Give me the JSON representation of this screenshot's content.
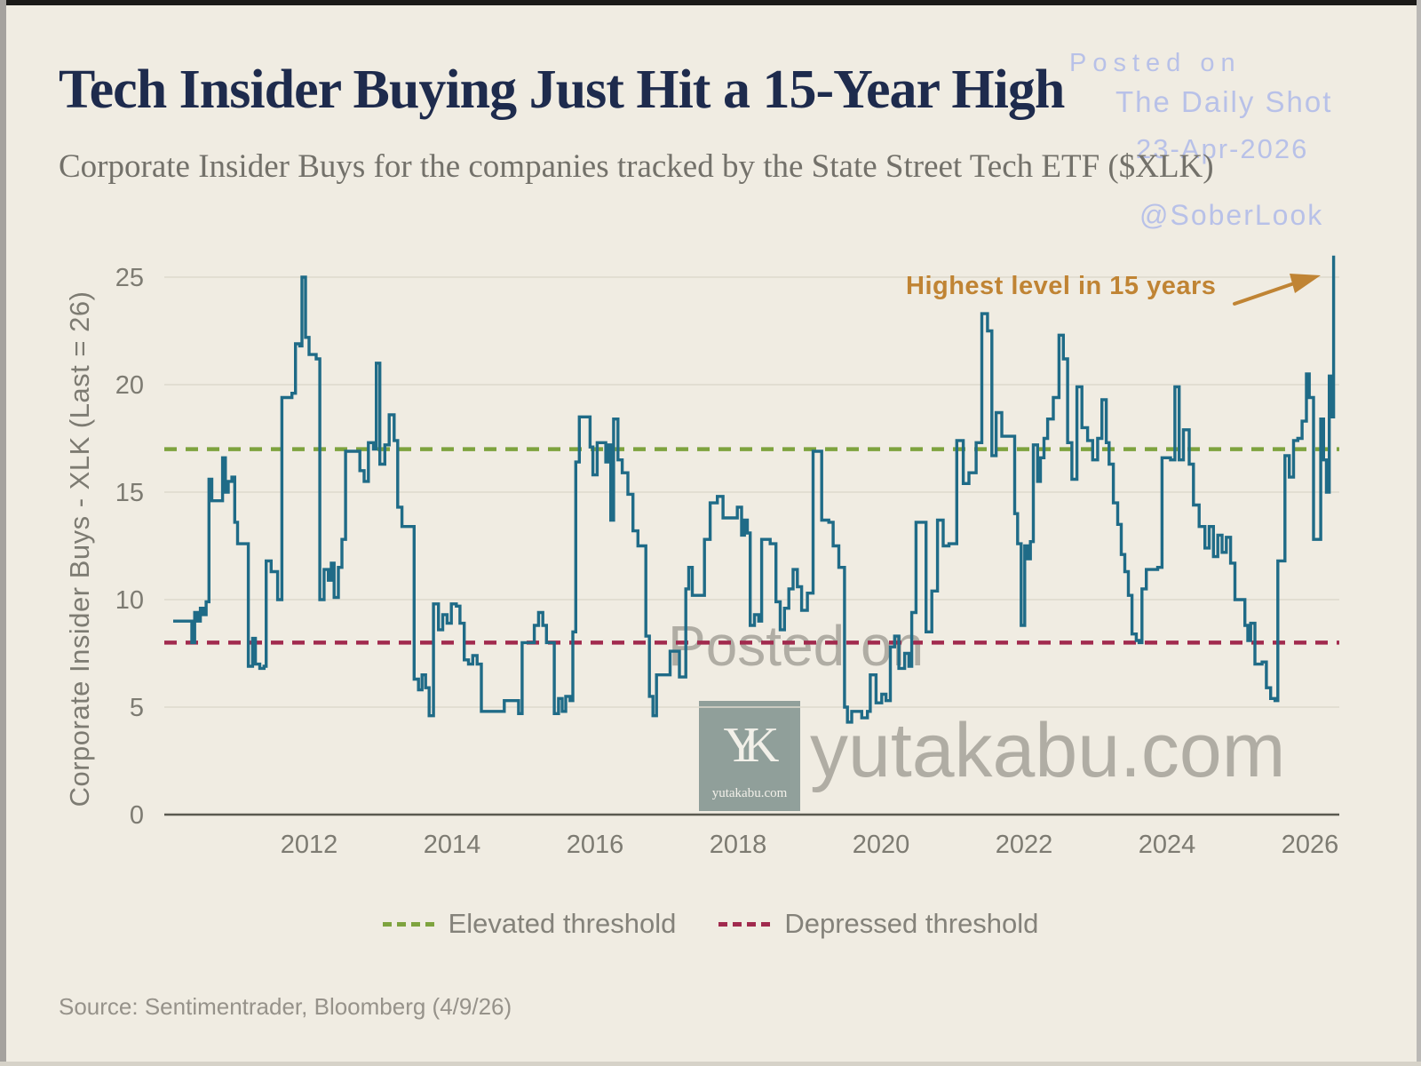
{
  "header": {
    "title": "Tech Insider Buying Just Hit a 15-Year High",
    "subtitle": "Corporate Insider Buys for the companies tracked by the State Street Tech ETF ($XLK)"
  },
  "watermarks": {
    "accent_color": "#b6bfe9",
    "gray_color": "#7d7a73",
    "posted_on_small": "Posted on",
    "daily_shot": "The Daily Shot",
    "date": "23-Apr-2026",
    "handle": "@SoberLook",
    "posted_on_large": "Posted on",
    "site": "yutakabu.com",
    "logo_monogram": "YK",
    "logo_caption": "yutakabu.com",
    "logo_box_color": "#8d9c98"
  },
  "legend": [
    {
      "label": "Elevated threshold",
      "color": "#7ea33e"
    },
    {
      "label": "Depressed threshold",
      "color": "#a12a4e"
    }
  ],
  "footer": {
    "source": "Source: Sentimentrader, Bloomberg (4/9/26)"
  },
  "chart_data": {
    "type": "line",
    "ylabel": "Corporate Insider Buys - XLK (Last = 26)",
    "xlabel": "",
    "x_ticks": [
      2012,
      2014,
      2016,
      2018,
      2020,
      2022,
      2024,
      2026
    ],
    "y_ticks": [
      0,
      5,
      10,
      15,
      20,
      25
    ],
    "xlim": [
      2010.1,
      2026.45
    ],
    "ylim": [
      0,
      26.5
    ],
    "grid": "horizontal",
    "legend_position": "bottom",
    "line_color": "#1f6b87",
    "grid_color": "#ded9cc",
    "axis_color": "#5a594f",
    "tick_color": "#7d7b72",
    "last_value": 26,
    "annotation": {
      "text": "Highest level in 15 years",
      "color": "#c08434"
    },
    "thresholds": {
      "elevated": {
        "value": 17,
        "color": "#7ea33e",
        "label": "Elevated threshold"
      },
      "depressed": {
        "value": 8,
        "color": "#a12a4e",
        "label": "Depressed threshold"
      }
    },
    "series": [
      {
        "name": "Corporate Insider Buys - XLK",
        "points": [
          [
            2010.1,
            9.0
          ],
          [
            2010.32,
            9.0
          ],
          [
            2010.36,
            8.0
          ],
          [
            2010.4,
            9.4
          ],
          [
            2010.44,
            9.0
          ],
          [
            2010.48,
            9.6
          ],
          [
            2010.52,
            9.3
          ],
          [
            2010.56,
            9.9
          ],
          [
            2010.6,
            15.6
          ],
          [
            2010.64,
            14.6
          ],
          [
            2010.74,
            14.6
          ],
          [
            2010.79,
            16.6
          ],
          [
            2010.83,
            15.0
          ],
          [
            2010.87,
            15.5
          ],
          [
            2010.92,
            15.7
          ],
          [
            2010.96,
            13.6
          ],
          [
            2011.0,
            12.6
          ],
          [
            2011.11,
            12.6
          ],
          [
            2011.15,
            6.9
          ],
          [
            2011.21,
            8.2
          ],
          [
            2011.25,
            7.0
          ],
          [
            2011.31,
            6.8
          ],
          [
            2011.37,
            6.9
          ],
          [
            2011.4,
            11.8
          ],
          [
            2011.47,
            11.3
          ],
          [
            2011.56,
            10.0
          ],
          [
            2011.62,
            19.4
          ],
          [
            2011.76,
            19.6
          ],
          [
            2011.81,
            21.9
          ],
          [
            2011.87,
            21.8
          ],
          [
            2011.9,
            25.0
          ],
          [
            2011.95,
            22.2
          ],
          [
            2012.0,
            21.4
          ],
          [
            2012.1,
            21.2
          ],
          [
            2012.15,
            10.0
          ],
          [
            2012.21,
            11.4
          ],
          [
            2012.27,
            10.9
          ],
          [
            2012.31,
            11.7
          ],
          [
            2012.35,
            10.1
          ],
          [
            2012.41,
            11.5
          ],
          [
            2012.46,
            12.8
          ],
          [
            2012.51,
            16.9
          ],
          [
            2012.64,
            16.9
          ],
          [
            2012.71,
            16.0
          ],
          [
            2012.77,
            15.5
          ],
          [
            2012.83,
            17.3
          ],
          [
            2012.9,
            17.0
          ],
          [
            2012.94,
            21.0
          ],
          [
            2012.99,
            16.3
          ],
          [
            2013.06,
            17.2
          ],
          [
            2013.12,
            18.6
          ],
          [
            2013.19,
            17.4
          ],
          [
            2013.24,
            14.3
          ],
          [
            2013.3,
            13.4
          ],
          [
            2013.43,
            13.4
          ],
          [
            2013.47,
            6.3
          ],
          [
            2013.53,
            5.8
          ],
          [
            2013.58,
            6.5
          ],
          [
            2013.63,
            5.9
          ],
          [
            2013.68,
            4.6
          ],
          [
            2013.74,
            9.8
          ],
          [
            2013.81,
            8.6
          ],
          [
            2013.87,
            9.3
          ],
          [
            2013.93,
            8.9
          ],
          [
            2013.99,
            9.8
          ],
          [
            2014.06,
            9.7
          ],
          [
            2014.11,
            8.9
          ],
          [
            2014.17,
            7.2
          ],
          [
            2014.23,
            7.0
          ],
          [
            2014.29,
            7.4
          ],
          [
            2014.35,
            7.0
          ],
          [
            2014.41,
            4.8
          ],
          [
            2014.69,
            4.8
          ],
          [
            2014.73,
            5.3
          ],
          [
            2014.89,
            5.3
          ],
          [
            2014.93,
            4.7
          ],
          [
            2014.98,
            8.0
          ],
          [
            2015.11,
            8.0
          ],
          [
            2015.15,
            8.8
          ],
          [
            2015.21,
            9.4
          ],
          [
            2015.27,
            8.8
          ],
          [
            2015.32,
            8.0
          ],
          [
            2015.39,
            8.0
          ],
          [
            2015.43,
            4.7
          ],
          [
            2015.49,
            5.4
          ],
          [
            2015.54,
            4.8
          ],
          [
            2015.59,
            5.5
          ],
          [
            2015.65,
            5.3
          ],
          [
            2015.69,
            8.5
          ],
          [
            2015.73,
            16.4
          ],
          [
            2015.78,
            18.5
          ],
          [
            2015.89,
            18.5
          ],
          [
            2015.93,
            17.1
          ],
          [
            2015.97,
            15.8
          ],
          [
            2016.03,
            17.3
          ],
          [
            2016.11,
            17.3
          ],
          [
            2016.15,
            16.4
          ],
          [
            2016.18,
            17.2
          ],
          [
            2016.22,
            13.7
          ],
          [
            2016.26,
            18.4
          ],
          [
            2016.32,
            16.5
          ],
          [
            2016.38,
            15.9
          ],
          [
            2016.46,
            14.9
          ],
          [
            2016.53,
            13.2
          ],
          [
            2016.6,
            12.5
          ],
          [
            2016.67,
            12.5
          ],
          [
            2016.71,
            8.3
          ],
          [
            2016.76,
            5.5
          ],
          [
            2016.81,
            4.6
          ],
          [
            2016.86,
            6.5
          ],
          [
            2016.99,
            6.5
          ],
          [
            2017.05,
            7.6
          ],
          [
            2017.13,
            7.6
          ],
          [
            2017.18,
            6.4
          ],
          [
            2017.23,
            6.4
          ],
          [
            2017.27,
            10.5
          ],
          [
            2017.31,
            11.5
          ],
          [
            2017.36,
            10.2
          ],
          [
            2017.45,
            10.2
          ],
          [
            2017.53,
            12.8
          ],
          [
            2017.61,
            14.5
          ],
          [
            2017.71,
            14.8
          ],
          [
            2017.79,
            13.8
          ],
          [
            2017.95,
            13.8
          ],
          [
            2017.99,
            14.3
          ],
          [
            2018.05,
            13.0
          ],
          [
            2018.09,
            13.7
          ],
          [
            2018.13,
            13.1
          ],
          [
            2018.17,
            8.8
          ],
          [
            2018.23,
            9.3
          ],
          [
            2018.29,
            9.0
          ],
          [
            2018.33,
            12.8
          ],
          [
            2018.45,
            12.6
          ],
          [
            2018.53,
            9.9
          ],
          [
            2018.59,
            8.6
          ],
          [
            2018.65,
            9.6
          ],
          [
            2018.71,
            10.5
          ],
          [
            2018.77,
            11.4
          ],
          [
            2018.83,
            10.6
          ],
          [
            2018.89,
            9.5
          ],
          [
            2018.97,
            10.3
          ],
          [
            2019.05,
            16.9
          ],
          [
            2019.11,
            16.9
          ],
          [
            2019.17,
            13.7
          ],
          [
            2019.27,
            13.6
          ],
          [
            2019.33,
            12.5
          ],
          [
            2019.41,
            11.5
          ],
          [
            2019.49,
            5.0
          ],
          [
            2019.53,
            4.3
          ],
          [
            2019.59,
            4.8
          ],
          [
            2019.73,
            4.5
          ],
          [
            2019.81,
            4.8
          ],
          [
            2019.85,
            6.5
          ],
          [
            2019.93,
            5.2
          ],
          [
            2020.01,
            5.6
          ],
          [
            2020.07,
            5.3
          ],
          [
            2020.13,
            7.8
          ],
          [
            2020.19,
            8.3
          ],
          [
            2020.25,
            6.8
          ],
          [
            2020.33,
            7.5
          ],
          [
            2020.39,
            6.9
          ],
          [
            2020.43,
            9.4
          ],
          [
            2020.49,
            13.6
          ],
          [
            2020.57,
            13.6
          ],
          [
            2020.63,
            8.5
          ],
          [
            2020.71,
            10.4
          ],
          [
            2020.79,
            13.7
          ],
          [
            2020.87,
            12.5
          ],
          [
            2020.95,
            12.6
          ],
          [
            2021.06,
            17.4
          ],
          [
            2021.15,
            15.4
          ],
          [
            2021.23,
            15.9
          ],
          [
            2021.33,
            17.3
          ],
          [
            2021.41,
            23.3
          ],
          [
            2021.49,
            22.5
          ],
          [
            2021.55,
            16.7
          ],
          [
            2021.61,
            18.7
          ],
          [
            2021.69,
            17.6
          ],
          [
            2021.83,
            17.6
          ],
          [
            2021.87,
            14.0
          ],
          [
            2021.91,
            12.6
          ],
          [
            2021.96,
            8.8
          ],
          [
            2022.01,
            12.5
          ],
          [
            2022.05,
            11.9
          ],
          [
            2022.09,
            12.7
          ],
          [
            2022.13,
            17.2
          ],
          [
            2022.19,
            15.5
          ],
          [
            2022.23,
            16.6
          ],
          [
            2022.28,
            17.5
          ],
          [
            2022.33,
            18.4
          ],
          [
            2022.41,
            19.4
          ],
          [
            2022.49,
            22.3
          ],
          [
            2022.55,
            21.2
          ],
          [
            2022.61,
            17.3
          ],
          [
            2022.67,
            15.6
          ],
          [
            2022.74,
            19.9
          ],
          [
            2022.81,
            18.0
          ],
          [
            2022.89,
            17.4
          ],
          [
            2022.96,
            16.5
          ],
          [
            2023.03,
            17.5
          ],
          [
            2023.09,
            19.3
          ],
          [
            2023.15,
            17.3
          ],
          [
            2023.19,
            16.3
          ],
          [
            2023.25,
            14.5
          ],
          [
            2023.31,
            13.5
          ],
          [
            2023.36,
            12.1
          ],
          [
            2023.41,
            11.3
          ],
          [
            2023.46,
            10.2
          ],
          [
            2023.51,
            8.4
          ],
          [
            2023.57,
            8.1
          ],
          [
            2023.61,
            8.0
          ],
          [
            2023.65,
            10.5
          ],
          [
            2023.71,
            11.4
          ],
          [
            2023.87,
            11.5
          ],
          [
            2023.93,
            16.6
          ],
          [
            2024.05,
            16.5
          ],
          [
            2024.11,
            19.9
          ],
          [
            2024.17,
            16.5
          ],
          [
            2024.23,
            17.9
          ],
          [
            2024.31,
            16.3
          ],
          [
            2024.37,
            14.4
          ],
          [
            2024.45,
            13.4
          ],
          [
            2024.53,
            12.4
          ],
          [
            2024.59,
            13.4
          ],
          [
            2024.65,
            12.0
          ],
          [
            2024.71,
            13.0
          ],
          [
            2024.77,
            12.2
          ],
          [
            2024.83,
            12.9
          ],
          [
            2024.89,
            11.7
          ],
          [
            2024.95,
            10.0
          ],
          [
            2025.03,
            10.0
          ],
          [
            2025.09,
            8.8
          ],
          [
            2025.13,
            8.1
          ],
          [
            2025.17,
            8.9
          ],
          [
            2025.23,
            7.0
          ],
          [
            2025.33,
            7.1
          ],
          [
            2025.39,
            5.9
          ],
          [
            2025.45,
            5.4
          ],
          [
            2025.51,
            5.3
          ],
          [
            2025.55,
            11.8
          ],
          [
            2025.61,
            11.8
          ],
          [
            2025.65,
            16.7
          ],
          [
            2025.71,
            15.7
          ],
          [
            2025.77,
            17.4
          ],
          [
            2025.83,
            17.5
          ],
          [
            2025.89,
            18.3
          ],
          [
            2025.95,
            20.5
          ],
          [
            2025.99,
            19.4
          ],
          [
            2026.05,
            12.8
          ],
          [
            2026.11,
            12.8
          ],
          [
            2026.15,
            18.4
          ],
          [
            2026.19,
            16.5
          ],
          [
            2026.23,
            15.0
          ],
          [
            2026.27,
            20.4
          ],
          [
            2026.3,
            18.5
          ],
          [
            2026.33,
            26.0
          ]
        ]
      }
    ]
  }
}
